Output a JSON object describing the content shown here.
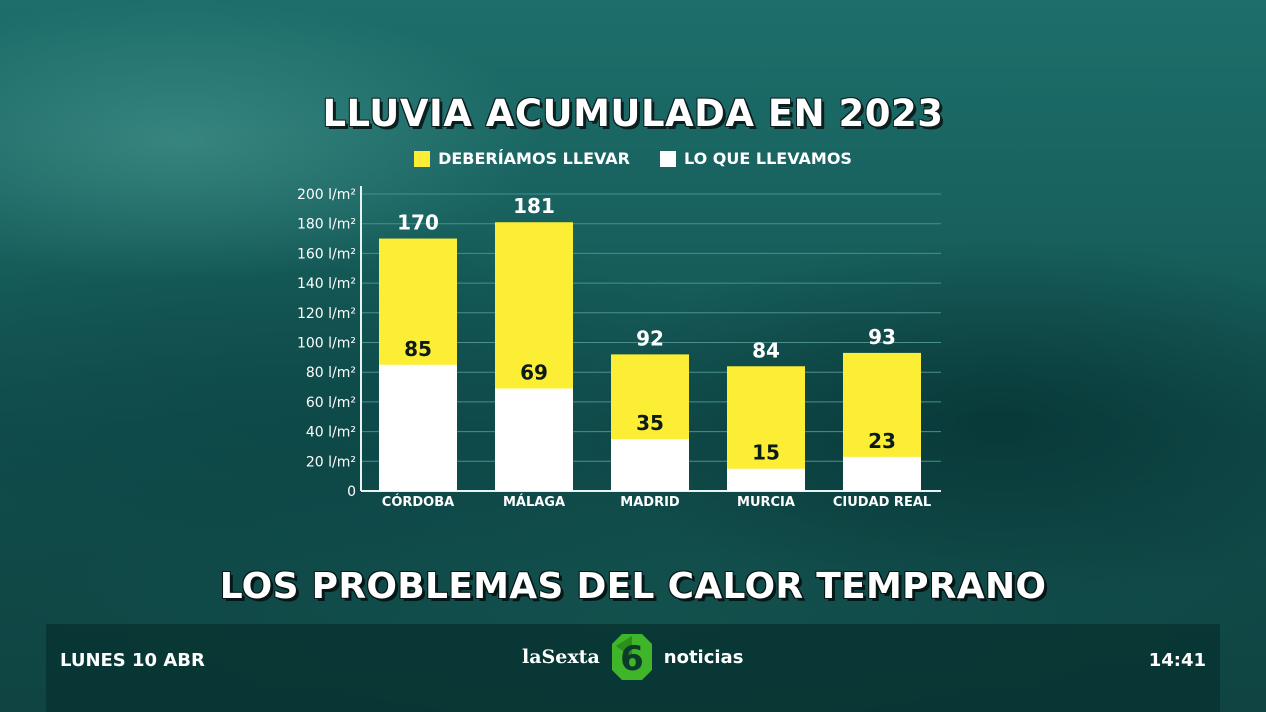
{
  "colors": {
    "should": "#fbee34",
    "actual": "#ffffff",
    "grid": "#4a8f8c",
    "axis": "#e8f4f2"
  },
  "chart_data": {
    "type": "bar",
    "title": "LLUVIA ACUMULADA EN 2023",
    "categories": [
      "CÓRDOBA",
      "MÁLAGA",
      "MADRID",
      "MURCIA",
      "CIUDAD REAL"
    ],
    "series": [
      {
        "name": "DEBERÍAMOS LLEVAR",
        "values": [
          170,
          181,
          92,
          84,
          93
        ]
      },
      {
        "name": "LO QUE LLEVAMOS",
        "values": [
          85,
          69,
          35,
          15,
          23
        ]
      }
    ],
    "yticks": [
      "0",
      "20 l/m²",
      "40 l/m²",
      "60 l/m²",
      "80 l/m²",
      "100 l/m²",
      "120 l/m²",
      "140 l/m²",
      "160 l/m²",
      "180 l/m²",
      "200 l/m²"
    ],
    "ylim": [
      0,
      200
    ],
    "grid": true,
    "legend": "top-center"
  },
  "legend": {
    "should_label": "DEBERÍAMOS LLEVAR",
    "actual_label": "LO QUE LLEVAMOS"
  },
  "headline": "LOS PROBLEMAS DEL CALOR TEMPRANO",
  "ticker": {
    "date": "LUNES 10 ABR",
    "brand_left": "laSexta",
    "logo_number": "6",
    "brand_right": "noticias",
    "time": "14:41"
  }
}
